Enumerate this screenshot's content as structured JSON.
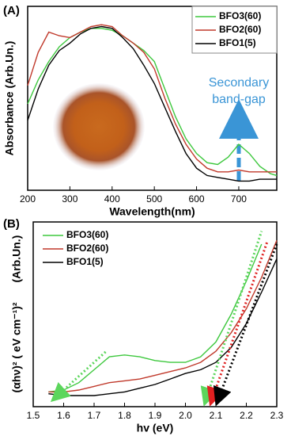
{
  "chart_data": [
    {
      "type": "line",
      "label": "(A)",
      "xlabel": "Wavelength(nm)",
      "ylabel": "Absorbance (Arb.Un.)",
      "annotation": [
        "Secondary",
        "band-gap"
      ],
      "x": [
        200,
        225,
        250,
        275,
        300,
        325,
        350,
        375,
        400,
        425,
        450,
        475,
        500,
        525,
        550,
        575,
        600,
        625,
        650,
        675,
        700,
        725,
        750,
        775,
        790
      ],
      "xlim": [
        200,
        790
      ],
      "xticks": [
        200,
        300,
        400,
        500,
        600,
        700
      ],
      "ylim": [
        0,
        1
      ],
      "legend": "upper right",
      "series": [
        {
          "name": "BFO3(60)",
          "color": "#3ec83e",
          "values": [
            0.47,
            0.6,
            0.7,
            0.78,
            0.83,
            0.86,
            0.88,
            0.88,
            0.87,
            0.84,
            0.8,
            0.76,
            0.7,
            0.55,
            0.4,
            0.28,
            0.2,
            0.15,
            0.14,
            0.18,
            0.25,
            0.2,
            0.13,
            0.09,
            0.08
          ]
        },
        {
          "name": "BFO2(60)",
          "color": "#c0392b",
          "values": [
            0.57,
            0.75,
            0.86,
            0.84,
            0.83,
            0.86,
            0.89,
            0.9,
            0.89,
            0.84,
            0.8,
            0.75,
            0.66,
            0.5,
            0.36,
            0.25,
            0.17,
            0.12,
            0.1,
            0.1,
            0.11,
            0.1,
            0.1,
            0.1,
            0.1
          ]
        },
        {
          "name": "BFO1(5)",
          "color": "#000000",
          "values": [
            0.38,
            0.55,
            0.68,
            0.76,
            0.8,
            0.85,
            0.88,
            0.89,
            0.88,
            0.83,
            0.77,
            0.68,
            0.58,
            0.45,
            0.32,
            0.2,
            0.12,
            0.08,
            0.07,
            0.06,
            0.05,
            0.05,
            0.06,
            0.06,
            0.06
          ]
        }
      ]
    },
    {
      "type": "line",
      "label": "(B)",
      "xlabel": "hv (eV)",
      "ylabel": "(αhν)² ( eV cm⁻¹)²",
      "ylabel_unit": "(Arb.Un.)",
      "x": [
        1.55,
        1.6,
        1.65,
        1.7,
        1.75,
        1.8,
        1.85,
        1.9,
        1.95,
        2.0,
        2.05,
        2.1,
        2.15,
        2.2,
        2.25,
        2.3
      ],
      "xlim": [
        1.5,
        2.3
      ],
      "xticks": [
        1.5,
        1.6,
        1.7,
        1.8,
        1.9,
        {
          "value": 2,
          "label": "2.0"
        },
        2.1,
        2.2,
        2.3
      ],
      "ylim": [
        0,
        1
      ],
      "legend": "upper left",
      "series": [
        {
          "name": "BFO3(60)",
          "color": "#3ec83e",
          "values": [
            0.08,
            0.09,
            0.13,
            0.2,
            0.27,
            0.28,
            0.27,
            0.25,
            0.24,
            0.24,
            0.27,
            0.35,
            0.5,
            0.68,
            0.88,
            null
          ]
        },
        {
          "name": "BFO2(60)",
          "color": "#c0392b",
          "values": [
            0.08,
            0.08,
            0.09,
            0.11,
            0.13,
            0.14,
            0.15,
            0.17,
            0.19,
            0.21,
            0.24,
            0.3,
            0.4,
            0.53,
            0.7,
            0.9
          ]
        },
        {
          "name": "BFO1(5)",
          "color": "#000000",
          "values": [
            0.07,
            0.06,
            0.06,
            0.06,
            0.07,
            0.08,
            0.1,
            0.12,
            0.15,
            0.18,
            0.2,
            0.24,
            0.32,
            0.45,
            0.62,
            0.8
          ]
        }
      ],
      "tangents": [
        {
          "color": "#5cd65c",
          "x": [
            1.58,
            1.74
          ],
          "values": [
            0.06,
            0.3
          ]
        },
        {
          "color": "#5cd65c",
          "x": [
            2.07,
            2.25
          ],
          "values": [
            0.05,
            0.95
          ]
        },
        {
          "color": "#e02020",
          "x": [
            2.09,
            2.27
          ],
          "values": [
            0.05,
            0.9
          ]
        },
        {
          "color": "#000000",
          "x": [
            2.11,
            2.3
          ],
          "values": [
            0.05,
            0.88
          ]
        }
      ]
    }
  ]
}
